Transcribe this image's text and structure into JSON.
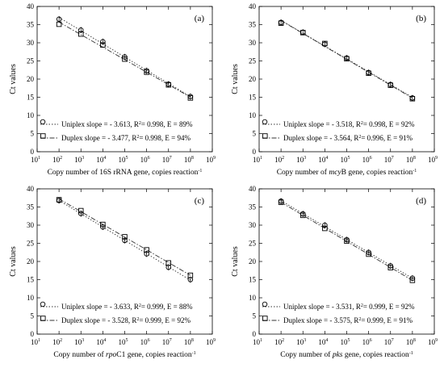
{
  "chart_data": [
    {
      "type": "scatter",
      "panel_label": "(a)",
      "xlabel_parts": [
        {
          "text": "Copy number of 16S rRNA gene, copies reaction"
        },
        {
          "text": "-1",
          "sup": true
        }
      ],
      "ylabel": "Ct values",
      "xscale": "log",
      "xlim": [
        10,
        1000000000
      ],
      "ylim": [
        0,
        40
      ],
      "yticks": [
        0,
        5,
        10,
        15,
        20,
        25,
        30,
        35,
        40
      ],
      "x_exponents": [
        1,
        2,
        3,
        4,
        5,
        6,
        7,
        8,
        9
      ],
      "legend_position": "bottom-left",
      "series": [
        {
          "name": "Uniplex",
          "marker": "circle",
          "line": "dotted",
          "legend_parts": [
            {
              "text": "Uniplex slope = - 3.613, R"
            },
            {
              "text": "2",
              "sup": true
            },
            {
              "text": "= 0.998, E = 89%"
            }
          ],
          "x": [
            100,
            1000,
            10000,
            100000,
            1000000,
            10000000,
            100000000
          ],
          "y": [
            36.5,
            33.5,
            30.3,
            26.1,
            22.3,
            18.6,
            15.2
          ]
        },
        {
          "name": "Duplex",
          "marker": "square",
          "line": "dashdot",
          "legend_parts": [
            {
              "text": "Duplex slope = - 3.477, R"
            },
            {
              "text": "2",
              "sup": true
            },
            {
              "text": "= 0.998, E = 94%"
            }
          ],
          "x": [
            100,
            1000,
            10000,
            100000,
            1000000,
            10000000,
            100000000
          ],
          "y": [
            35.1,
            32.4,
            29.4,
            25.5,
            21.9,
            18.4,
            14.8
          ]
        }
      ]
    },
    {
      "type": "scatter",
      "panel_label": "(b)",
      "xlabel_parts": [
        {
          "text": "Copy number of "
        },
        {
          "text": "mcy",
          "italic": true
        },
        {
          "text": "B gene, copies reaction"
        },
        {
          "text": "-1",
          "sup": true
        }
      ],
      "ylabel": "Ct values",
      "xscale": "log",
      "xlim": [
        10,
        1000000000
      ],
      "ylim": [
        0,
        40
      ],
      "yticks": [
        0,
        5,
        10,
        15,
        20,
        25,
        30,
        35,
        40
      ],
      "x_exponents": [
        1,
        2,
        3,
        4,
        5,
        6,
        7,
        8,
        9
      ],
      "legend_position": "bottom-left",
      "series": [
        {
          "name": "Uniplex",
          "marker": "circle",
          "line": "dotted",
          "legend_parts": [
            {
              "text": "Uniplex slope = - 3.518, R"
            },
            {
              "text": "2",
              "sup": true
            },
            {
              "text": "= 0.998, E = 92%"
            }
          ],
          "x": [
            100,
            1000,
            10000,
            100000,
            1000000,
            10000000,
            100000000
          ],
          "y": [
            35.6,
            32.9,
            29.6,
            25.8,
            21.8,
            18.5,
            14.8
          ]
        },
        {
          "name": "Duplex",
          "marker": "square",
          "line": "dashdot",
          "legend_parts": [
            {
              "text": "Duplex slope = - 3.564, R"
            },
            {
              "text": "2",
              "sup": true
            },
            {
              "text": "= 0.996, E = 91%"
            }
          ],
          "x": [
            100,
            1000,
            10000,
            100000,
            1000000,
            10000000,
            100000000
          ],
          "y": [
            35.4,
            32.8,
            29.8,
            25.6,
            21.6,
            18.3,
            14.6
          ]
        }
      ]
    },
    {
      "type": "scatter",
      "panel_label": "(c)",
      "xlabel_parts": [
        {
          "text": "Copy number of "
        },
        {
          "text": "rpo",
          "italic": true
        },
        {
          "text": "C1 gene, copies reaction"
        },
        {
          "text": "-1",
          "sup": true
        }
      ],
      "ylabel": "Ct values",
      "xscale": "log",
      "xlim": [
        10,
        1000000000
      ],
      "ylim": [
        0,
        40
      ],
      "yticks": [
        0,
        5,
        10,
        15,
        20,
        25,
        30,
        35,
        40
      ],
      "x_exponents": [
        1,
        2,
        3,
        4,
        5,
        6,
        7,
        8,
        9
      ],
      "legend_position": "bottom-left",
      "series": [
        {
          "name": "Uniplex",
          "marker": "circle",
          "line": "dotted",
          "legend_parts": [
            {
              "text": "Uniplex slope = - 3.633, R"
            },
            {
              "text": "2",
              "sup": true
            },
            {
              "text": "= 0.999, E = 88%"
            }
          ],
          "x": [
            100,
            1000,
            10000,
            100000,
            1000000,
            10000000,
            100000000
          ],
          "y": [
            36.8,
            33.2,
            29.5,
            25.8,
            22.1,
            18.4,
            15.0
          ]
        },
        {
          "name": "Duplex",
          "marker": "square",
          "line": "dashdot",
          "legend_parts": [
            {
              "text": "Duplex slope = - 3.528, R"
            },
            {
              "text": "2",
              "sup": true
            },
            {
              "text": "= 0.999, E = 92%"
            }
          ],
          "x": [
            100,
            1000,
            10000,
            100000,
            1000000,
            10000000,
            100000000
          ],
          "y": [
            37.0,
            34.0,
            30.2,
            26.8,
            23.2,
            19.6,
            16.2
          ]
        }
      ]
    },
    {
      "type": "scatter",
      "panel_label": "(d)",
      "xlabel_parts": [
        {
          "text": "Copy number of "
        },
        {
          "text": "pks",
          "italic": true
        },
        {
          "text": " gene, copies reaction"
        },
        {
          "text": "-1",
          "sup": true
        }
      ],
      "ylabel": "Ct values",
      "xscale": "log",
      "xlim": [
        10,
        1000000000
      ],
      "ylim": [
        0,
        40
      ],
      "yticks": [
        0,
        5,
        10,
        15,
        20,
        25,
        30,
        35,
        40
      ],
      "x_exponents": [
        1,
        2,
        3,
        4,
        5,
        6,
        7,
        8,
        9
      ],
      "legend_position": "bottom-left",
      "series": [
        {
          "name": "Uniplex",
          "marker": "circle",
          "line": "dotted",
          "legend_parts": [
            {
              "text": "Uniplex slope = - 3.531, R"
            },
            {
              "text": "2",
              "sup": true
            },
            {
              "text": "= 0.999, E = 92%"
            }
          ],
          "x": [
            100,
            1000,
            10000,
            100000,
            1000000,
            10000000,
            100000000
          ],
          "y": [
            36.6,
            33.1,
            30.0,
            26.0,
            22.5,
            18.8,
            15.4
          ]
        },
        {
          "name": "Duplex",
          "marker": "square",
          "line": "dashdot",
          "legend_parts": [
            {
              "text": "Duplex slope = - 3.575, R"
            },
            {
              "text": "2",
              "sup": true
            },
            {
              "text": "= 0.999, E = 91%"
            }
          ],
          "x": [
            100,
            1000,
            10000,
            100000,
            1000000,
            10000000,
            100000000
          ],
          "y": [
            36.3,
            32.7,
            29.1,
            25.6,
            22.0,
            18.3,
            14.8
          ]
        }
      ]
    }
  ]
}
